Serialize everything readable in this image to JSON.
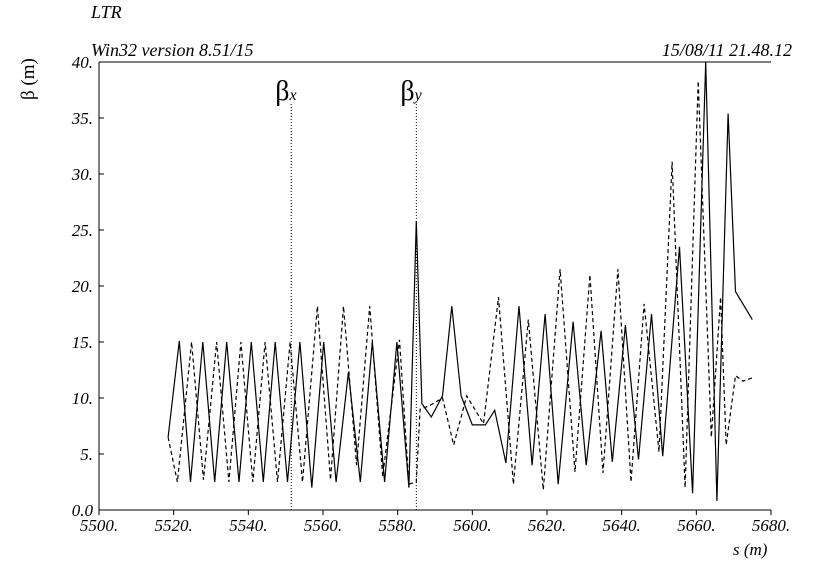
{
  "header": {
    "title": "LTR",
    "version": "Win32 version 8.51/15",
    "datestamp": "15/08/11  21.48.12"
  },
  "chart_data": {
    "type": "line",
    "xlabel": "s (m)",
    "ylabel": "β (m)",
    "xlim": [
      5500,
      5680
    ],
    "ylim": [
      0,
      40
    ],
    "xticks": [
      "5500.",
      "5520.",
      "5540.",
      "5560.",
      "5580.",
      "5600.",
      "5620.",
      "5640.",
      "5660.",
      "5680."
    ],
    "yticks": [
      "0.0",
      "5.",
      "10.",
      "15.",
      "20.",
      "25.",
      "30.",
      "35.",
      "40."
    ],
    "markers": [
      {
        "label": "β",
        "sub": "x",
        "x": 5551.5
      },
      {
        "label": "β",
        "sub": "y",
        "x": 5585
      }
    ],
    "series": [
      {
        "name": "β",
        "style": "solid",
        "points": [
          [
            5518.5,
            6.5
          ],
          [
            5521.5,
            15.1
          ],
          [
            5524.5,
            2.5
          ],
          [
            5527.8,
            15.0
          ],
          [
            5531,
            2.5
          ],
          [
            5534.2,
            15.0
          ],
          [
            5537.5,
            2.5
          ],
          [
            5540.8,
            15.0
          ],
          [
            5544,
            2.5
          ],
          [
            5547.2,
            15.0
          ],
          [
            5550.5,
            2.5
          ],
          [
            5553.8,
            15.0
          ],
          [
            5557,
            2.0
          ],
          [
            5560.2,
            15.0
          ],
          [
            5563.5,
            2.5
          ],
          [
            5566.8,
            12.3
          ],
          [
            5570,
            2.5
          ],
          [
            5573.2,
            15.0
          ],
          [
            5576.5,
            2.5
          ],
          [
            5579.8,
            15.0
          ],
          [
            5583,
            2.0
          ],
          [
            5585,
            25.8
          ],
          [
            5586.5,
            9.5
          ],
          [
            5589,
            8.3
          ],
          [
            5592,
            10.2
          ],
          [
            5594.5,
            18.2
          ],
          [
            5597,
            10.2
          ],
          [
            5600,
            7.6
          ],
          [
            5603.5,
            7.6
          ],
          [
            5606,
            8.9
          ],
          [
            5609,
            4.2
          ],
          [
            5612.5,
            18.2
          ],
          [
            5616,
            4.0
          ],
          [
            5619.5,
            17.5
          ],
          [
            5623,
            2.3
          ],
          [
            5627,
            16.8
          ],
          [
            5630.5,
            4.0
          ],
          [
            5634.5,
            16.0
          ],
          [
            5637.5,
            4.3
          ],
          [
            5641,
            16.5
          ],
          [
            5644.5,
            4.5
          ],
          [
            5648,
            17.5
          ],
          [
            5651,
            4.8
          ],
          [
            5655.5,
            23.5
          ],
          [
            5659,
            1.5
          ],
          [
            5662.5,
            40.0
          ],
          [
            5665.5,
            0.8
          ],
          [
            5668.5,
            35.4
          ],
          [
            5670.5,
            19.5
          ],
          [
            5675,
            17.0
          ]
        ]
      },
      {
        "name": "",
        "style": "dashed",
        "points": [
          [
            5518.5,
            6.5
          ],
          [
            5521,
            2.5
          ],
          [
            5524.8,
            15.0
          ],
          [
            5528,
            2.7
          ],
          [
            5531.5,
            15.0
          ],
          [
            5534.8,
            2.5
          ],
          [
            5538,
            15.0
          ],
          [
            5541.2,
            2.5
          ],
          [
            5544.5,
            15.0
          ],
          [
            5547.8,
            2.5
          ],
          [
            5551.2,
            15.0
          ],
          [
            5554.5,
            2.5
          ],
          [
            5558.5,
            18.2
          ],
          [
            5562,
            2.7
          ],
          [
            5565.5,
            18.2
          ],
          [
            5569,
            4.0
          ],
          [
            5572.5,
            18.2
          ],
          [
            5576,
            3.0
          ],
          [
            5580.5,
            15.2
          ],
          [
            5583,
            2.3
          ],
          [
            5585,
            2.5
          ],
          [
            5586,
            9.0
          ],
          [
            5588.5,
            9.3
          ],
          [
            5592,
            10.0
          ],
          [
            5595,
            5.8
          ],
          [
            5598.5,
            10.2
          ],
          [
            5603,
            7.7
          ],
          [
            5607,
            19.0
          ],
          [
            5611,
            2.3
          ],
          [
            5615,
            17.0
          ],
          [
            5619,
            1.8
          ],
          [
            5623.5,
            21.5
          ],
          [
            5627.5,
            3.4
          ],
          [
            5631.5,
            21.0
          ],
          [
            5635,
            3.3
          ],
          [
            5639,
            21.5
          ],
          [
            5642.5,
            2.5
          ],
          [
            5646,
            18.4
          ],
          [
            5650,
            5.2
          ],
          [
            5653.5,
            31.1
          ],
          [
            5657,
            2.0
          ],
          [
            5660.5,
            38.3
          ],
          [
            5664,
            6.5
          ],
          [
            5666.5,
            19.0
          ],
          [
            5668,
            5.8
          ],
          [
            5670.5,
            12.0
          ],
          [
            5672.5,
            11.5
          ],
          [
            5675,
            11.8
          ]
        ]
      }
    ]
  }
}
